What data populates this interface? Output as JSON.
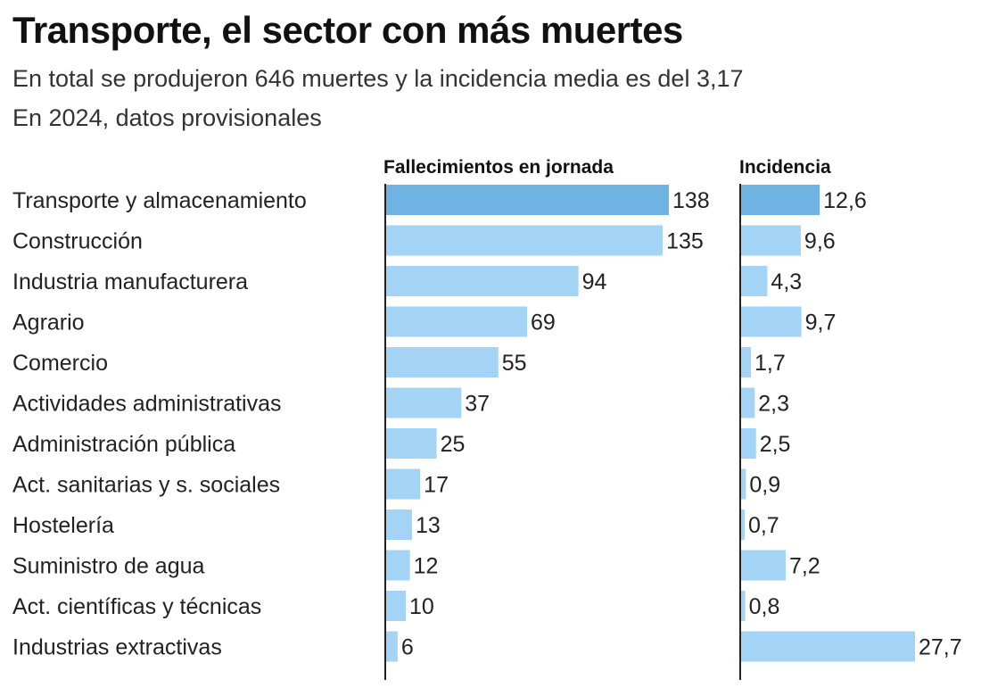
{
  "title": "Transporte, el sector con más muertes",
  "subtitle": "En total se produjeron 646 muertes y la incidencia media es del 3,17",
  "note": "En 2024, datos provisionales",
  "colors": {
    "highlight": "#6fb3e3",
    "bar": "#a3d4f5",
    "axis": "#222222",
    "text": "#222222"
  },
  "chart_data": {
    "type": "bar",
    "orientation": "horizontal",
    "categories": [
      "Transporte y almacenamiento",
      "Construcción",
      "Industria manufacturera",
      "Agrario",
      "Comercio",
      "Actividades administrativas",
      "Administración pública",
      "Act. sanitarias y s. sociales",
      "Hostelería",
      "Suministro de agua",
      "Act. científicas y técnicas",
      "Industrias extractivas"
    ],
    "series": [
      {
        "name": "Fallecimientos en jornada",
        "values": [
          138,
          135,
          94,
          69,
          55,
          37,
          25,
          17,
          13,
          12,
          10,
          6
        ],
        "labels": [
          "138",
          "135",
          "94",
          "69",
          "55",
          "37",
          "25",
          "17",
          "13",
          "12",
          "10",
          "6"
        ],
        "xlim": [
          0,
          138
        ]
      },
      {
        "name": "Incidencia",
        "values": [
          12.6,
          9.6,
          4.3,
          9.7,
          1.7,
          2.3,
          2.5,
          0.9,
          0.7,
          7.2,
          0.8,
          27.7
        ],
        "labels": [
          "12,6",
          "9,6",
          "4,3",
          "9,7",
          "1,7",
          "2,3",
          "2,5",
          "0,9",
          "0,7",
          "7,2",
          "0,8",
          "27,7"
        ],
        "xlim": [
          0,
          27.7
        ]
      }
    ],
    "highlight_index": 0
  }
}
